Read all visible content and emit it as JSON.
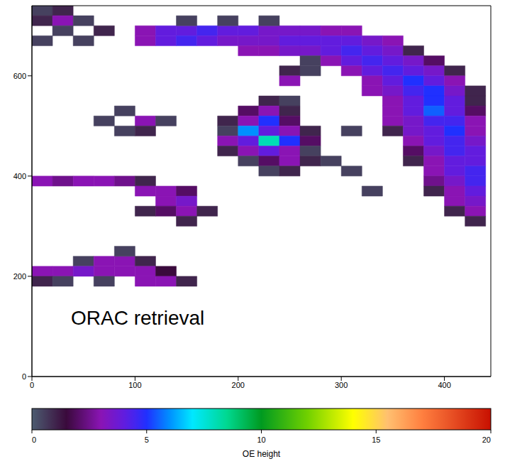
{
  "chart_data": {
    "type": "heatmap",
    "annotation": "ORAC retrieval",
    "xlim": [
      0,
      445
    ],
    "xticks": [
      0,
      100,
      200,
      300,
      400
    ],
    "ylim": [
      0,
      740
    ],
    "yticks": [
      0,
      200,
      400,
      600
    ],
    "cell_size": [
      20,
      20
    ],
    "colorbar": {
      "label": "OE height",
      "range": [
        0,
        20
      ],
      "ticks": [
        0,
        5,
        10,
        15,
        20
      ]
    },
    "cells": [
      [
        100,
        680,
        3
      ],
      [
        120,
        680,
        4
      ],
      [
        140,
        680,
        4
      ],
      [
        160,
        680,
        4.5
      ],
      [
        180,
        680,
        4
      ],
      [
        200,
        680,
        4
      ],
      [
        220,
        680,
        3.5
      ],
      [
        240,
        680,
        3.5
      ],
      [
        260,
        680,
        3.5
      ],
      [
        280,
        680,
        3
      ],
      [
        300,
        680,
        3
      ],
      [
        100,
        660,
        3
      ],
      [
        120,
        660,
        4
      ],
      [
        140,
        660,
        4.5
      ],
      [
        160,
        660,
        4
      ],
      [
        180,
        660,
        3.5
      ],
      [
        200,
        660,
        3.5
      ],
      [
        220,
        660,
        3.5
      ],
      [
        240,
        660,
        4
      ],
      [
        260,
        660,
        4
      ],
      [
        280,
        660,
        4
      ],
      [
        300,
        660,
        4
      ],
      [
        320,
        660,
        3.5
      ],
      [
        340,
        660,
        3
      ],
      [
        140,
        700,
        0.5
      ],
      [
        180,
        700,
        0.5
      ],
      [
        220,
        700,
        0.5
      ],
      [
        200,
        640,
        3
      ],
      [
        220,
        640,
        3
      ],
      [
        240,
        640,
        3.5
      ],
      [
        260,
        640,
        3.5
      ],
      [
        280,
        640,
        4
      ],
      [
        300,
        640,
        4.5
      ],
      [
        320,
        640,
        4
      ],
      [
        340,
        640,
        3.5
      ],
      [
        360,
        640,
        1
      ],
      [
        260,
        620,
        0.5
      ],
      [
        280,
        620,
        3
      ],
      [
        300,
        620,
        4
      ],
      [
        320,
        620,
        4.5
      ],
      [
        340,
        620,
        4
      ],
      [
        360,
        620,
        3.5
      ],
      [
        380,
        620,
        2
      ],
      [
        300,
        600,
        3
      ],
      [
        320,
        600,
        4
      ],
      [
        340,
        600,
        4.5
      ],
      [
        360,
        600,
        4
      ],
      [
        380,
        600,
        3.5
      ],
      [
        400,
        600,
        1
      ],
      [
        320,
        580,
        3
      ],
      [
        340,
        580,
        4
      ],
      [
        360,
        580,
        5
      ],
      [
        380,
        580,
        4
      ],
      [
        400,
        580,
        3
      ],
      [
        320,
        560,
        3
      ],
      [
        340,
        560,
        3.5
      ],
      [
        360,
        560,
        4.5
      ],
      [
        380,
        560,
        5
      ],
      [
        400,
        560,
        3.5
      ],
      [
        420,
        560,
        1
      ],
      [
        340,
        540,
        3
      ],
      [
        360,
        540,
        4
      ],
      [
        380,
        540,
        5
      ],
      [
        400,
        540,
        4
      ],
      [
        420,
        540,
        1
      ],
      [
        340,
        520,
        3
      ],
      [
        360,
        520,
        4
      ],
      [
        380,
        520,
        5.5
      ],
      [
        400,
        520,
        4
      ],
      [
        420,
        520,
        2
      ],
      [
        340,
        500,
        3
      ],
      [
        360,
        500,
        3.5
      ],
      [
        380,
        500,
        4.5
      ],
      [
        400,
        500,
        4.5
      ],
      [
        420,
        500,
        3
      ],
      [
        340,
        480,
        1
      ],
      [
        360,
        480,
        3.5
      ],
      [
        380,
        480,
        4
      ],
      [
        400,
        480,
        5
      ],
      [
        420,
        480,
        3
      ],
      [
        360,
        460,
        3
      ],
      [
        380,
        460,
        4
      ],
      [
        400,
        460,
        4.5
      ],
      [
        420,
        460,
        3.5
      ],
      [
        360,
        440,
        2
      ],
      [
        380,
        440,
        3.5
      ],
      [
        400,
        440,
        4.5
      ],
      [
        420,
        440,
        4
      ],
      [
        360,
        420,
        1
      ],
      [
        380,
        420,
        3
      ],
      [
        400,
        420,
        4
      ],
      [
        420,
        420,
        4
      ],
      [
        380,
        400,
        3
      ],
      [
        400,
        400,
        4
      ],
      [
        420,
        400,
        4.5
      ],
      [
        380,
        380,
        2.5
      ],
      [
        400,
        380,
        3.5
      ],
      [
        420,
        380,
        4.5
      ],
      [
        380,
        360,
        1
      ],
      [
        400,
        360,
        3
      ],
      [
        420,
        360,
        4
      ],
      [
        400,
        340,
        3
      ],
      [
        420,
        340,
        3.5
      ],
      [
        400,
        320,
        1
      ],
      [
        420,
        320,
        3
      ],
      [
        420,
        300,
        1
      ],
      [
        220,
        540,
        1
      ],
      [
        240,
        540,
        0.5
      ],
      [
        200,
        520,
        2
      ],
      [
        220,
        520,
        3
      ],
      [
        240,
        520,
        1
      ],
      [
        180,
        500,
        1
      ],
      [
        200,
        500,
        3
      ],
      [
        220,
        500,
        5
      ],
      [
        240,
        500,
        2
      ],
      [
        180,
        480,
        0.5
      ],
      [
        200,
        480,
        6
      ],
      [
        220,
        480,
        4
      ],
      [
        240,
        480,
        3
      ],
      [
        260,
        480,
        1
      ],
      [
        180,
        460,
        3
      ],
      [
        200,
        460,
        4
      ],
      [
        220,
        460,
        8
      ],
      [
        240,
        460,
        5
      ],
      [
        260,
        460,
        2
      ],
      [
        180,
        440,
        1
      ],
      [
        200,
        440,
        3
      ],
      [
        220,
        440,
        4
      ],
      [
        240,
        440,
        3
      ],
      [
        260,
        440,
        0.5
      ],
      [
        200,
        420,
        0.5
      ],
      [
        220,
        420,
        2
      ],
      [
        240,
        420,
        3
      ],
      [
        260,
        420,
        1
      ],
      [
        280,
        420,
        0.5
      ],
      [
        220,
        400,
        0.5
      ],
      [
        240,
        400,
        1
      ],
      [
        240,
        600,
        1
      ],
      [
        260,
        600,
        0.5
      ],
      [
        240,
        580,
        3
      ],
      [
        300,
        480,
        0.5
      ],
      [
        0,
        720,
        0.5
      ],
      [
        20,
        720,
        1
      ],
      [
        0,
        700,
        1
      ],
      [
        20,
        700,
        3
      ],
      [
        40,
        700,
        0.5
      ],
      [
        20,
        680,
        0.5
      ],
      [
        60,
        680,
        1
      ],
      [
        0,
        660,
        0.5
      ],
      [
        40,
        660,
        0.5
      ],
      [
        60,
        500,
        0.5
      ],
      [
        100,
        500,
        3
      ],
      [
        120,
        500,
        0.5
      ],
      [
        80,
        480,
        0.5
      ],
      [
        100,
        480,
        1
      ],
      [
        80,
        520,
        0.5
      ],
      [
        0,
        380,
        3
      ],
      [
        20,
        380,
        2.5
      ],
      [
        40,
        380,
        3
      ],
      [
        60,
        380,
        3
      ],
      [
        80,
        380,
        2.5
      ],
      [
        100,
        380,
        1
      ],
      [
        100,
        360,
        3
      ],
      [
        120,
        360,
        3
      ],
      [
        140,
        360,
        2
      ],
      [
        120,
        340,
        3
      ],
      [
        140,
        340,
        3.5
      ],
      [
        100,
        320,
        1
      ],
      [
        120,
        320,
        2
      ],
      [
        140,
        320,
        3
      ],
      [
        160,
        320,
        1
      ],
      [
        140,
        300,
        1
      ],
      [
        40,
        220,
        0.5
      ],
      [
        60,
        220,
        3
      ],
      [
        80,
        220,
        3
      ],
      [
        100,
        220,
        1
      ],
      [
        0,
        200,
        3
      ],
      [
        20,
        200,
        3
      ],
      [
        40,
        200,
        3.5
      ],
      [
        60,
        200,
        3
      ],
      [
        80,
        200,
        3
      ],
      [
        100,
        200,
        3
      ],
      [
        120,
        200,
        1.5
      ],
      [
        0,
        180,
        1
      ],
      [
        20,
        180,
        0.5
      ],
      [
        60,
        180,
        0.5
      ],
      [
        100,
        180,
        3
      ],
      [
        120,
        180,
        3
      ],
      [
        140,
        180,
        1
      ],
      [
        80,
        240,
        0.5
      ],
      [
        300,
        400,
        0.5
      ],
      [
        320,
        360,
        0.5
      ]
    ]
  }
}
